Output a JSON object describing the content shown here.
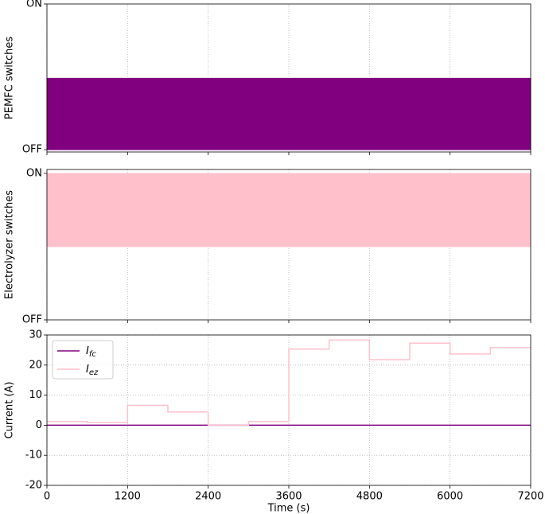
{
  "chart_data": [
    {
      "type": "band",
      "ylabel": "PEMFC switches",
      "x": [
        0,
        7200
      ],
      "xlim": [
        0,
        7200
      ],
      "xticks": [
        0,
        1200,
        2400,
        3600,
        4800,
        6000,
        7200
      ],
      "show_xtick_labels": false,
      "ylim": [
        -0.016,
        1
      ],
      "yticks": [
        {
          "value": 0,
          "label": "OFF"
        },
        {
          "value": 1,
          "label": "ON"
        }
      ],
      "grid": "x",
      "series": [
        {
          "color": "#800080",
          "low": [
            0,
            0
          ],
          "high": [
            0.49,
            0.49
          ]
        }
      ]
    },
    {
      "type": "band",
      "ylabel": "Electrolyzer switches",
      "x": [
        0,
        7200
      ],
      "xlim": [
        0,
        7200
      ],
      "xticks": [
        0,
        1200,
        2400,
        3600,
        4800,
        6000,
        7200
      ],
      "show_xtick_labels": false,
      "ylim": [
        0,
        1.027
      ],
      "yticks": [
        {
          "value": 0,
          "label": "OFF"
        },
        {
          "value": 1,
          "label": "ON"
        }
      ],
      "grid": "x",
      "series": [
        {
          "color": "#ffc0cb",
          "low": [
            0.5,
            0.5
          ],
          "high": [
            1,
            1
          ]
        }
      ]
    },
    {
      "type": "step",
      "ylabel": "Current (A)",
      "xlabel": "Time (s)",
      "x": [
        0,
        600,
        1200,
        1800,
        2400,
        3000,
        3600,
        4200,
        4800,
        5400,
        6000,
        6600,
        7200
      ],
      "xlim": [
        0,
        7200
      ],
      "xticks": [
        0,
        1200,
        2400,
        3600,
        4800,
        6000,
        7200
      ],
      "show_xtick_labels": true,
      "ylim": [
        -20,
        30
      ],
      "yticks": [
        -20,
        -10,
        0,
        10,
        20,
        30
      ],
      "grid": "both",
      "legend": "upper left",
      "series": [
        {
          "name": "Ifc",
          "color": "#800080",
          "values": [
            0,
            0,
            0,
            0,
            0,
            0,
            0,
            0,
            0,
            0,
            0,
            0,
            0
          ]
        },
        {
          "name": "Iez",
          "color": "#ffc0cb",
          "values": [
            1.2,
            0.9,
            6.6,
            4.4,
            0,
            1.2,
            25.3,
            28.3,
            21.8,
            27.3,
            23.7,
            25.8,
            25.8
          ]
        }
      ]
    }
  ]
}
